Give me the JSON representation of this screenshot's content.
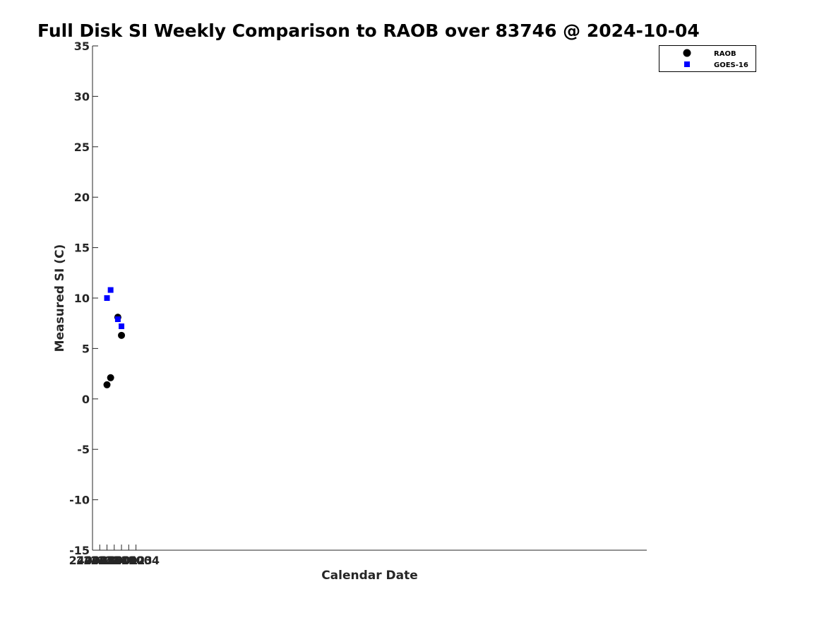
{
  "chart_data": {
    "type": "scatter",
    "title": "Full Disk SI Weekly Comparison to RAOB over 83746 @ 2024-10-04",
    "xlabel": "Calendar Date",
    "ylabel": "Measured SI (C)",
    "xlim": [
      240928,
      241004.5
    ],
    "ylim": [
      -15,
      35
    ],
    "x_ticks": [
      {
        "pos": 240928,
        "label": "240928"
      },
      {
        "pos": 240929,
        "label": "240929"
      },
      {
        "pos": 240930,
        "label": "240930"
      },
      {
        "pos": 240931,
        "label": "241001"
      },
      {
        "pos": 240932,
        "label": "241002"
      },
      {
        "pos": 240933,
        "label": "241003"
      },
      {
        "pos": 240934,
        "label": "241004"
      }
    ],
    "y_ticks": [
      -15,
      -10,
      -5,
      0,
      5,
      10,
      15,
      20,
      25,
      30,
      35
    ],
    "grid": false,
    "legend_position": "top-right",
    "series": [
      {
        "name": "RAOB",
        "marker": "circle",
        "color": "#000000",
        "points": [
          {
            "x": 240930.0,
            "y": 1.4
          },
          {
            "x": 240930.5,
            "y": 2.1
          },
          {
            "x": 240931.5,
            "y": 8.1
          },
          {
            "x": 240932.0,
            "y": 6.3
          }
        ]
      },
      {
        "name": "GOES-16",
        "marker": "square",
        "color": "#0000ff",
        "points": [
          {
            "x": 240930.0,
            "y": 10.0
          },
          {
            "x": 240930.5,
            "y": 10.8
          },
          {
            "x": 240931.5,
            "y": 7.9
          },
          {
            "x": 240932.0,
            "y": 7.2
          }
        ]
      }
    ]
  }
}
